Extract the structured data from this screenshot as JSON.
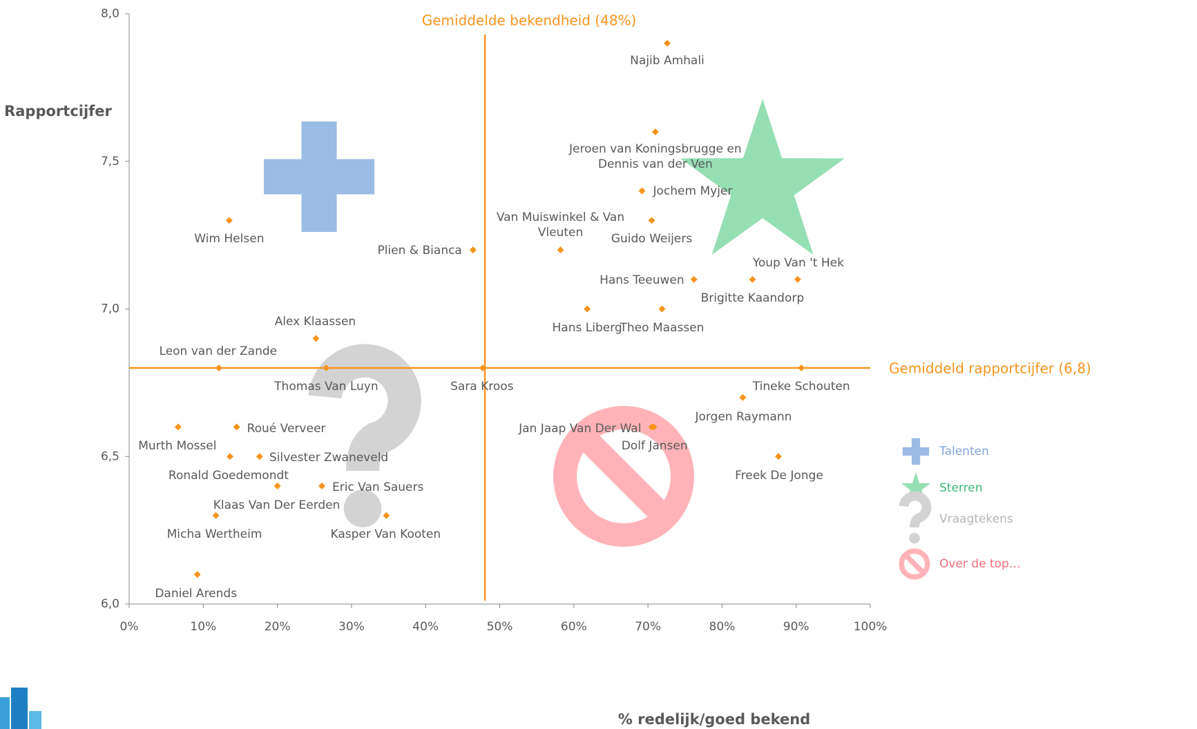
{
  "chart_data": {
    "type": "scatter",
    "xlabel": "% redelijk/goed bekend",
    "ylabel": "Rapportcijfer",
    "xlim": [
      0,
      100
    ],
    "ylim": [
      6,
      8
    ],
    "xticks": [
      {
        "value": 0,
        "label": "0%"
      },
      {
        "value": 10,
        "label": "10%"
      },
      {
        "value": 20,
        "label": "20%"
      },
      {
        "value": 30,
        "label": "30%"
      },
      {
        "value": 40,
        "label": "40%"
      },
      {
        "value": 50,
        "label": "50%"
      },
      {
        "value": 60,
        "label": "60%"
      },
      {
        "value": 70,
        "label": "70%"
      },
      {
        "value": 80,
        "label": "80%"
      },
      {
        "value": 90,
        "label": "90%"
      },
      {
        "value": 100,
        "label": "100%"
      }
    ],
    "yticks": [
      {
        "value": 6,
        "label": "6,0"
      },
      {
        "value": 6.5,
        "label": "6,5"
      },
      {
        "value": 7,
        "label": "7,0"
      },
      {
        "value": 7.5,
        "label": "7,5"
      },
      {
        "value": 8,
        "label": "8,0"
      }
    ],
    "color": "#f7941d",
    "points": [
      {
        "name": "Najib Amhali",
        "x": 72.6,
        "y": 7.9
      },
      {
        "name": "Jeroen van Koningsbrugge en Dennis van der Ven",
        "x": 71.0,
        "y": 7.6
      },
      {
        "name": "Jochem Myjer",
        "x": 69.2,
        "y": 7.4
      },
      {
        "name": "Guido Weijers",
        "x": 70.5,
        "y": 7.3
      },
      {
        "name": "Van Muiswinkel & Van Vleuten",
        "x": 58.2,
        "y": 7.2
      },
      {
        "name": "Plien & Bianca",
        "x": 46.4,
        "y": 7.2
      },
      {
        "name": "Wim Helsen",
        "x": 13.5,
        "y": 7.3
      },
      {
        "name": "Hans Teeuwen",
        "x": 76.2,
        "y": 7.1
      },
      {
        "name": "Brigitte Kaandorp",
        "x": 84.1,
        "y": 7.1
      },
      {
        "name": "Youp Van 't Hek",
        "x": 90.2,
        "y": 7.1
      },
      {
        "name": "Hans Liberg",
        "x": 61.8,
        "y": 7.0
      },
      {
        "name": "Theo Maassen",
        "x": 71.9,
        "y": 7.0
      },
      {
        "name": "Alex Klaassen",
        "x": 25.2,
        "y": 6.9
      },
      {
        "name": "Leon van der Zande",
        "x": 12.1,
        "y": 6.8
      },
      {
        "name": "Thomas Van Luyn",
        "x": 26.6,
        "y": 6.8
      },
      {
        "name": "Sara Kroos",
        "x": 47.7,
        "y": 6.8
      },
      {
        "name": "Tineke Schouten",
        "x": 90.7,
        "y": 6.8
      },
      {
        "name": "Jorgen Raymann",
        "x": 82.8,
        "y": 6.7
      },
      {
        "name": "Jan Jaap Van Der Wal",
        "x": 70.5,
        "y": 6.6
      },
      {
        "name": "Dolf Jansen",
        "x": 70.8,
        "y": 6.6
      },
      {
        "name": "Freek De Jonge",
        "x": 87.6,
        "y": 6.5
      },
      {
        "name": "Murth Mossel",
        "x": 6.6,
        "y": 6.6
      },
      {
        "name": "Roué Verveer",
        "x": 14.5,
        "y": 6.6
      },
      {
        "name": "Ronald Goedemondt",
        "x": 13.6,
        "y": 6.5
      },
      {
        "name": "Silvester Zwaneveld",
        "x": 17.6,
        "y": 6.5
      },
      {
        "name": "Klaas Van Der Eerden",
        "x": 20.0,
        "y": 6.4
      },
      {
        "name": "Eric Van Sauers",
        "x": 26.0,
        "y": 6.4
      },
      {
        "name": "Micha Wertheim",
        "x": 11.7,
        "y": 6.3
      },
      {
        "name": "Kasper Van Kooten",
        "x": 34.7,
        "y": 6.3
      },
      {
        "name": "Daniel Arends",
        "x": 9.2,
        "y": 6.1
      }
    ],
    "x_mean": {
      "value": 48,
      "label": "Gemiddelde bekendheid (48%)"
    },
    "y_mean": {
      "value": 6.8,
      "label": "Gemiddeld rapportcijfer (6,8)"
    },
    "mean_color": "#f7941d",
    "legend": [
      {
        "label": "Talenten",
        "color": "#9cbbe5",
        "text_color": "#7fa7dc"
      },
      {
        "label": "Sterren",
        "color": "#96dfb5",
        "text_color": "#3fb97a"
      },
      {
        "label": "Vraagtekens",
        "color": "#d3d3d3",
        "text_color": "#b5b5b5"
      },
      {
        "label": "Over de top…",
        "color": "#ffb3b8",
        "text_color": "#f26d78"
      }
    ]
  }
}
